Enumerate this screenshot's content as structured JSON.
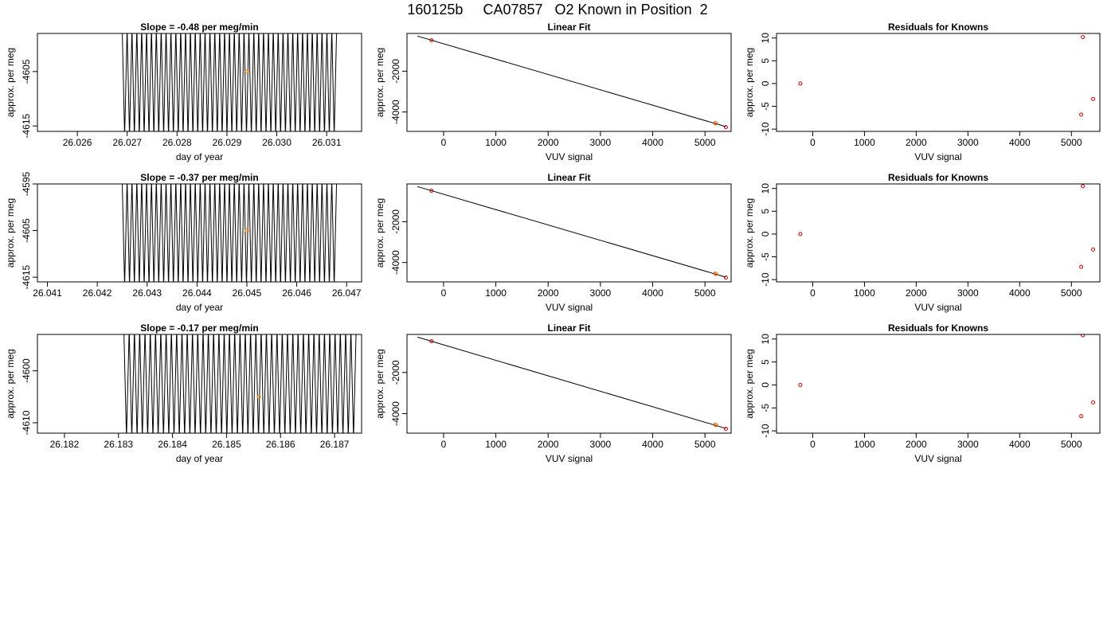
{
  "page": {
    "title": "160125b     CA07857   O2 Known in Position  2"
  },
  "colors": {
    "trace": "#000000",
    "fit_line": "#000000",
    "known_point": "#cc0000",
    "marker_point": "#ff8c00"
  },
  "chart_data": [
    {
      "type": "line",
      "title": "Slope =  -0.48  per meg/min",
      "xlabel": "day of year",
      "ylabel": "approx. per meg",
      "xlim": [
        26.0252,
        26.0317
      ],
      "ylim": [
        -4616,
        -4598
      ],
      "xticks": [
        "26.026",
        "26.027",
        "26.028",
        "26.029",
        "26.030",
        "26.031"
      ],
      "yticks": [
        "-4605",
        "-4615"
      ],
      "trace": {
        "x_start": 26.0269,
        "x_end": 26.0312,
        "cycles": 44,
        "y_high": -4597,
        "y_low": -4617
      },
      "mean_point": {
        "x": 26.0294,
        "y": -4605.0
      }
    },
    {
      "type": "scatter",
      "title": "Linear Fit",
      "xlabel": "VUV signal",
      "ylabel": "approx. per meg",
      "xlim": [
        -700,
        5500
      ],
      "ylim": [
        -4950,
        -150
      ],
      "xticks": [
        "0",
        "1000",
        "2000",
        "3000",
        "4000",
        "5000"
      ],
      "yticks": [
        "-2000",
        "-4000"
      ],
      "fit_line": {
        "x": [
          -500,
          5400
        ],
        "y": [
          -280,
          -4720
        ]
      },
      "points": [
        {
          "x": -230,
          "y": -480,
          "color": "red"
        },
        {
          "x": 5200,
          "y": -4550,
          "color": "red"
        },
        {
          "x": 5210,
          "y": -4560,
          "color": "orange"
        },
        {
          "x": 5400,
          "y": -4740,
          "color": "red"
        }
      ]
    },
    {
      "type": "scatter",
      "title": "Residuals for Knowns",
      "xlabel": "VUV signal",
      "ylabel": "approx. per meg",
      "xlim": [
        -700,
        5550
      ],
      "ylim": [
        -10.5,
        11
      ],
      "xticks": [
        "0",
        "1000",
        "2000",
        "3000",
        "4000",
        "5000"
      ],
      "yticks": [
        "10",
        "5",
        "0",
        "-5",
        "-10"
      ],
      "points": [
        {
          "x": -240,
          "y": 0.0
        },
        {
          "x": 5220,
          "y": 10.2
        },
        {
          "x": 5190,
          "y": -6.8
        },
        {
          "x": 5420,
          "y": -3.4
        }
      ]
    },
    {
      "type": "line",
      "title": "Slope =  -0.37  per meg/min",
      "xlabel": "day of year",
      "ylabel": "approx. per meg",
      "xlim": [
        26.0408,
        26.0473
      ],
      "ylim": [
        -4616,
        -4595
      ],
      "xticks": [
        "26.041",
        "26.042",
        "26.043",
        "26.044",
        "26.045",
        "26.046",
        "26.047"
      ],
      "yticks": [
        "-4595",
        "-4605",
        "-4615"
      ],
      "trace": {
        "x_start": 26.0425,
        "x_end": 26.0468,
        "cycles": 44,
        "y_high": -4594,
        "y_low": -4617
      },
      "mean_point": {
        "x": 26.045,
        "y": -4605.0
      }
    },
    {
      "type": "scatter",
      "title": "Linear Fit",
      "xlabel": "VUV signal",
      "ylabel": "approx. per meg",
      "xlim": [
        -700,
        5500
      ],
      "ylim": [
        -4950,
        -150
      ],
      "xticks": [
        "0",
        "1000",
        "2000",
        "3000",
        "4000",
        "5000"
      ],
      "yticks": [
        "-2000",
        "-4000"
      ],
      "fit_line": {
        "x": [
          -500,
          5400
        ],
        "y": [
          -280,
          -4720
        ]
      },
      "points": [
        {
          "x": -230,
          "y": -480,
          "color": "red"
        },
        {
          "x": 5200,
          "y": -4550,
          "color": "red"
        },
        {
          "x": 5210,
          "y": -4560,
          "color": "orange"
        },
        {
          "x": 5400,
          "y": -4740,
          "color": "red"
        }
      ]
    },
    {
      "type": "scatter",
      "title": "Residuals for Knowns",
      "xlabel": "VUV signal",
      "ylabel": "approx. per meg",
      "xlim": [
        -700,
        5550
      ],
      "ylim": [
        -10.5,
        11
      ],
      "xticks": [
        "0",
        "1000",
        "2000",
        "3000",
        "4000",
        "5000"
      ],
      "yticks": [
        "10",
        "5",
        "0",
        "-5",
        "-10"
      ],
      "points": [
        {
          "x": -240,
          "y": 0.0
        },
        {
          "x": 5220,
          "y": 10.5
        },
        {
          "x": 5190,
          "y": -7.2
        },
        {
          "x": 5420,
          "y": -3.4
        }
      ]
    },
    {
      "type": "line",
      "title": "Slope =  -0.17  per meg/min",
      "xlabel": "day of year",
      "ylabel": "approx. per meg",
      "xlim": [
        26.1815,
        26.1875
      ],
      "ylim": [
        -4612,
        -4593
      ],
      "xticks": [
        "26.182",
        "26.183",
        "26.184",
        "26.185",
        "26.186",
        "26.187"
      ],
      "yticks": [
        "-4600",
        "-4610"
      ],
      "trace": {
        "x_start": 26.1831,
        "x_end": 26.1874,
        "cycles": 44,
        "y_high": -4592,
        "y_low": -4613
      },
      "mean_point": {
        "x": 26.1856,
        "y": -4605.0
      }
    },
    {
      "type": "scatter",
      "title": "Linear Fit",
      "xlabel": "VUV signal",
      "ylabel": "approx. per meg",
      "xlim": [
        -700,
        5500
      ],
      "ylim": [
        -4950,
        -150
      ],
      "xticks": [
        "0",
        "1000",
        "2000",
        "3000",
        "4000",
        "5000"
      ],
      "yticks": [
        "-2000",
        "-4000"
      ],
      "fit_line": {
        "x": [
          -500,
          5400
        ],
        "y": [
          -280,
          -4720
        ]
      },
      "points": [
        {
          "x": -230,
          "y": -480,
          "color": "red"
        },
        {
          "x": 5200,
          "y": -4550,
          "color": "red"
        },
        {
          "x": 5210,
          "y": -4560,
          "color": "orange"
        },
        {
          "x": 5400,
          "y": -4740,
          "color": "red"
        }
      ]
    },
    {
      "type": "scatter",
      "title": "Residuals for Knowns",
      "xlabel": "VUV signal",
      "ylabel": "approx. per meg",
      "xlim": [
        -700,
        5550
      ],
      "ylim": [
        -10.5,
        11
      ],
      "xticks": [
        "0",
        "1000",
        "2000",
        "3000",
        "4000",
        "5000"
      ],
      "yticks": [
        "10",
        "5",
        "0",
        "-5",
        "-10"
      ],
      "points": [
        {
          "x": -240,
          "y": 0.0
        },
        {
          "x": 5220,
          "y": 10.8
        },
        {
          "x": 5190,
          "y": -6.8
        },
        {
          "x": 5420,
          "y": -3.8
        }
      ]
    }
  ]
}
